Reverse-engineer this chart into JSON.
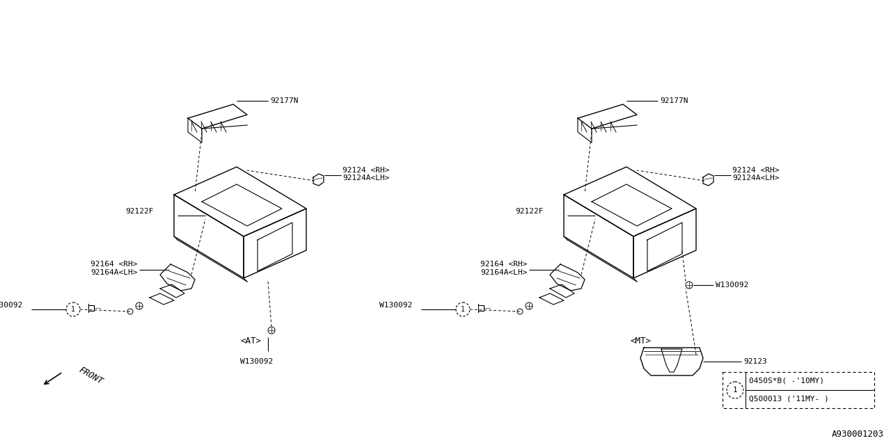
{
  "bg_color": "#ffffff",
  "line_color": "#000000",
  "title_bottom": "A930001203",
  "label_AT": "<AT>",
  "label_MT": "<MT>",
  "label_FRONT": "FRONT",
  "parts": {
    "92177N": "92177N",
    "92124_RH": "92124 <RH>",
    "92124A_LH": "92124A<LH>",
    "92122F": "92122F",
    "92164_RH": "92164 <RH>",
    "92164A_LH": "92164A<LH>",
    "W130092": "W130092",
    "92123": "92123"
  },
  "legend_circle_label": "1",
  "legend_line1": "0450S*B( -'10MY)",
  "legend_line2": "Q500013 ('11MY- )"
}
